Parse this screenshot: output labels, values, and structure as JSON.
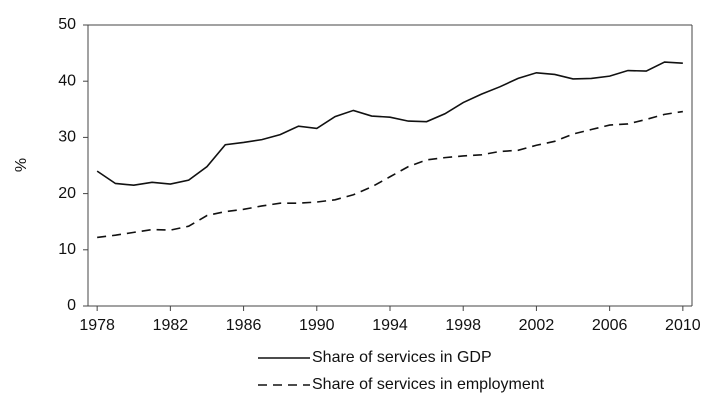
{
  "chart_data": {
    "type": "line",
    "y_label": "%",
    "x": [
      1978,
      1979,
      1980,
      1981,
      1982,
      1983,
      1984,
      1985,
      1986,
      1987,
      1988,
      1989,
      1990,
      1991,
      1992,
      1993,
      1994,
      1995,
      1996,
      1997,
      1998,
      1999,
      2000,
      2001,
      2002,
      2003,
      2004,
      2005,
      2006,
      2007,
      2008,
      2009,
      2010
    ],
    "series": [
      {
        "name": "Share of services in GDP",
        "color": "#111111",
        "line_style": "solid",
        "values": [
          24.0,
          21.8,
          21.5,
          22.0,
          21.7,
          22.4,
          24.8,
          28.7,
          29.1,
          29.6,
          30.5,
          32.0,
          31.6,
          33.7,
          34.8,
          33.8,
          33.6,
          32.9,
          32.8,
          34.2,
          36.2,
          37.7,
          39.0,
          40.5,
          41.5,
          41.2,
          40.4,
          40.5,
          40.9,
          41.9,
          41.8,
          43.4,
          43.2
        ]
      },
      {
        "name": "Share of services in employment",
        "color": "#111111",
        "line_style": "dashed",
        "values": [
          12.2,
          12.6,
          13.1,
          13.6,
          13.5,
          14.2,
          16.1,
          16.8,
          17.2,
          17.8,
          18.3,
          18.3,
          18.5,
          18.9,
          19.8,
          21.2,
          23.0,
          24.8,
          26.0,
          26.4,
          26.7,
          26.9,
          27.5,
          27.7,
          28.6,
          29.3,
          30.6,
          31.4,
          32.2,
          32.4,
          33.2,
          34.1,
          34.6
        ]
      }
    ],
    "xlim": [
      1977.5,
      2010.5
    ],
    "xticks": [
      1978,
      1982,
      1986,
      1990,
      1994,
      1998,
      2002,
      2006,
      2010
    ],
    "ylim": [
      0,
      50
    ],
    "yticks": [
      0,
      10,
      20,
      30,
      40,
      50
    ],
    "legend": "bottom"
  }
}
